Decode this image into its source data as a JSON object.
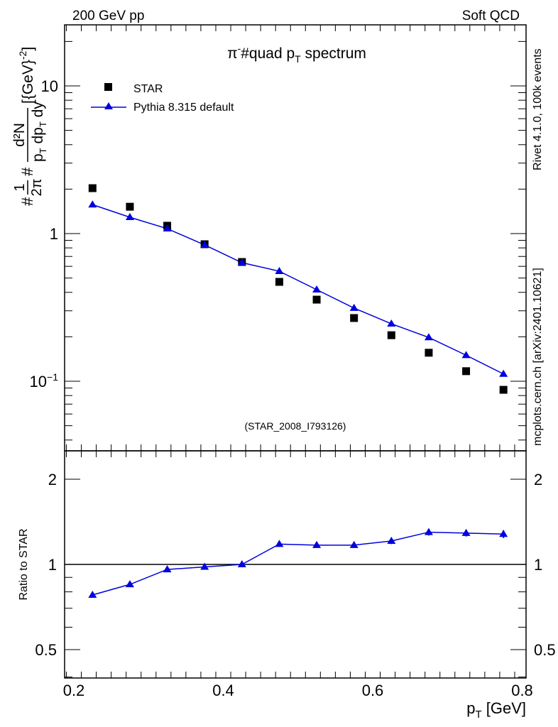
{
  "header": {
    "left": "200 GeV pp",
    "right": "Soft QCD"
  },
  "side": {
    "rivet": "Rivet 4.1.0,  100k events",
    "mcplots": "mcplots.cern.ch [arXiv:2401.10621]"
  },
  "colors": {
    "star": "#000000",
    "pythia": "#0000dd"
  },
  "chart_data": [
    {
      "type": "scatter",
      "title": {
        "pre": "π",
        "sup": "-",
        "mid": "#quad p",
        "sub": "T",
        "post": " spectrum"
      },
      "ylabel": {
        "hash1": "#",
        "num1": "1",
        "den1": "2π",
        "hash2": "#",
        "num2": "d²N",
        "den2": "p",
        "den2sub": "T",
        "den2b": " dp",
        "den2sub2": "T",
        "den2c": " dy",
        "unit": "[{GeV}",
        "unitsup": "-2",
        "unitend": "]"
      },
      "yscale": "log",
      "ylim": [
        0.0338,
        25.9
      ],
      "xlim": [
        0.188,
        0.81
      ],
      "yticklabels": [
        {
          "v": 10,
          "t": "10"
        },
        {
          "v": 1,
          "t": "1"
        },
        {
          "v": 0.1,
          "t": "10",
          "sup": "−1"
        }
      ],
      "legend": {
        "position": "top-left",
        "entries": [
          "STAR",
          "Pythia 8.315 default"
        ]
      },
      "annotation": "(STAR_2008_I793126)",
      "x": [
        0.225,
        0.275,
        0.325,
        0.375,
        0.425,
        0.475,
        0.525,
        0.575,
        0.625,
        0.675,
        0.725,
        0.775
      ],
      "series": [
        {
          "name": "STAR",
          "values": [
            2.03,
            1.52,
            1.13,
            0.847,
            0.642,
            0.471,
            0.357,
            0.268,
            0.205,
            0.156,
            0.117,
            0.0875
          ]
        },
        {
          "name": "Pythia 8.315 default",
          "values": [
            1.57,
            1.29,
            1.08,
            0.838,
            0.635,
            0.556,
            0.417,
            0.313,
            0.245,
            0.198,
            0.15,
            0.112
          ]
        }
      ]
    },
    {
      "type": "line",
      "ylabel": "Ratio to STAR",
      "xlabel": {
        "p": "p",
        "sub": "T",
        "rest": " [GeV]"
      },
      "yscale": "log",
      "ylim": [
        0.4,
        2.52
      ],
      "yticks": [
        {
          "v": 2,
          "t": "2"
        },
        {
          "v": 1,
          "t": "1"
        },
        {
          "v": 0.5,
          "t": "0.5"
        }
      ],
      "xticks": [
        {
          "v": 0.2,
          "t": "0.2"
        },
        {
          "v": 0.4,
          "t": "0.4"
        },
        {
          "v": 0.6,
          "t": "0.6"
        },
        {
          "v": 0.8,
          "t": "0.8"
        }
      ],
      "x": [
        0.225,
        0.275,
        0.325,
        0.375,
        0.425,
        0.475,
        0.525,
        0.575,
        0.625,
        0.675,
        0.725,
        0.775
      ],
      "ratio": [
        0.78,
        0.85,
        0.96,
        0.98,
        1.0,
        1.18,
        1.17,
        1.17,
        1.21,
        1.3,
        1.29,
        1.28
      ],
      "ratio_err": [
        0.015,
        0.015,
        0.015,
        0.015,
        0.015,
        0.02,
        0.025,
        0.025,
        0.03,
        0.035,
        0.035,
        0.04
      ]
    }
  ]
}
